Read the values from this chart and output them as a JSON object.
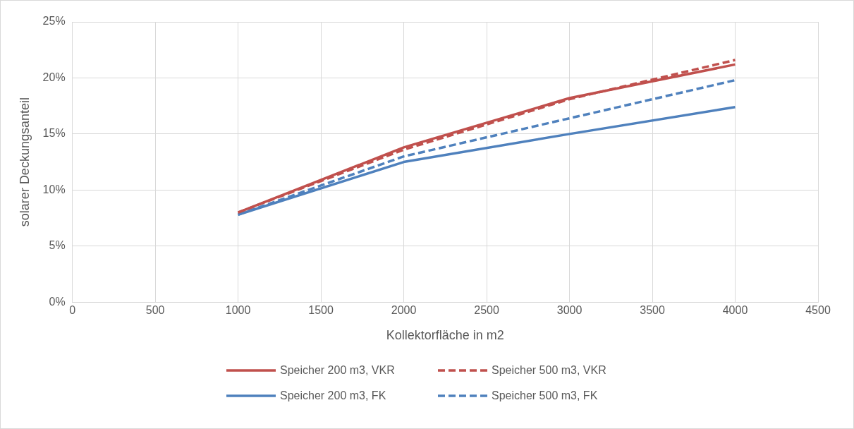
{
  "chart_data": {
    "type": "line",
    "xlabel": "Kollektorfläche in m2",
    "ylabel": "solarer Deckungsanteil",
    "x": [
      1000,
      2000,
      3000,
      4000
    ],
    "series": [
      {
        "name": "Speicher 200 m3, VKR",
        "color": "#c0504d",
        "line_style": "solid",
        "values": [
          8.0,
          13.8,
          18.2,
          21.2
        ]
      },
      {
        "name": "Speicher 500 m3, VKR",
        "color": "#c0504d",
        "line_style": "dashed",
        "values": [
          8.0,
          13.6,
          18.1,
          21.6
        ]
      },
      {
        "name": "Speicher 200 m3, FK",
        "color": "#4f81bd",
        "line_style": "solid",
        "values": [
          7.8,
          12.5,
          15.0,
          17.4
        ]
      },
      {
        "name": "Speicher 500 m3, FK",
        "color": "#4f81bd",
        "line_style": "dashed",
        "values": [
          7.8,
          13.0,
          16.4,
          19.8
        ]
      }
    ],
    "xlim": [
      0,
      4500
    ],
    "xticks": [
      0,
      500,
      1000,
      1500,
      2000,
      2500,
      3000,
      3500,
      4000,
      4500
    ],
    "ylim": [
      0,
      25
    ],
    "yticks": [
      {
        "value": 0,
        "label": "0%"
      },
      {
        "value": 5,
        "label": "5%"
      },
      {
        "value": 10,
        "label": "10%"
      },
      {
        "value": 15,
        "label": "15%"
      },
      {
        "value": 20,
        "label": "20%"
      },
      {
        "value": 25,
        "label": "25%"
      }
    ],
    "grid": true,
    "legend": "bottom",
    "marker": "none"
  }
}
